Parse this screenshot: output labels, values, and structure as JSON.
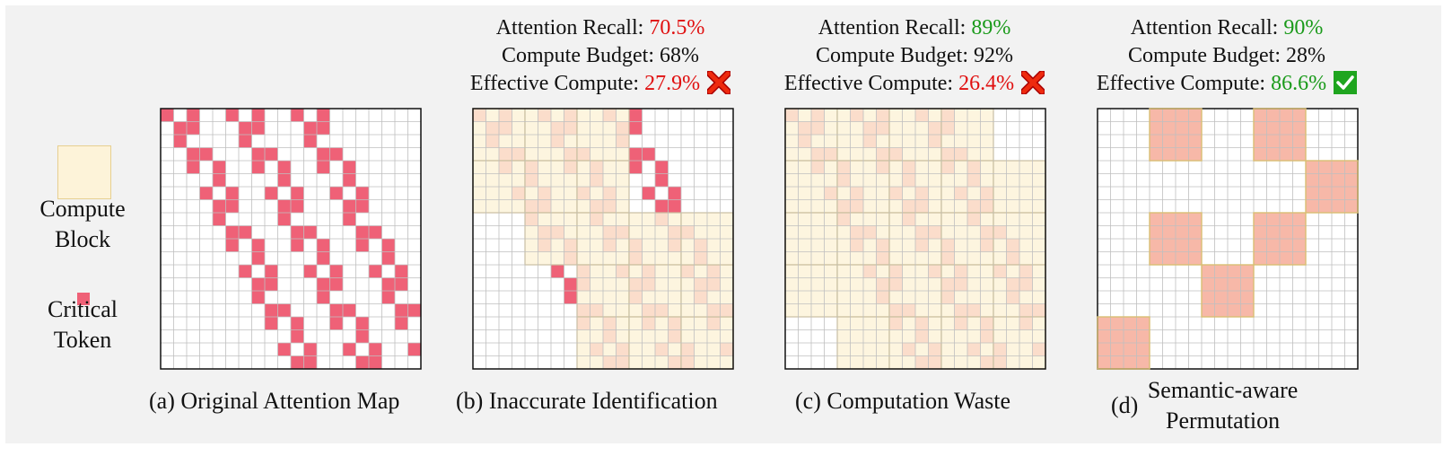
{
  "colors": {
    "panel_bg": "#f2f2f2",
    "grid_line": "#bfbfbf",
    "grid_border": "#111111",
    "critical": "#ef6177",
    "compute_block": "#fdf3d9",
    "compute_block_border": "#d9bf73",
    "permuted_block": "#f7b8a8",
    "bad": "#e01010",
    "good": "#1a9a1a"
  },
  "legend": {
    "compute_block": "Compute\nBlock",
    "critical_token": "Critical\nToken"
  },
  "panels": [
    {
      "caption": "(a) Original Attention Map"
    },
    {
      "caption": "(b) Inaccurate Identification",
      "metrics": {
        "recall_label": "Attention Recall:",
        "recall_value": "70.5%",
        "budget_label": "Compute Budget:",
        "budget_value": "68%",
        "effective_label": "Effective Compute:",
        "effective_value": "27.9%",
        "status_icon": "cross-icon"
      }
    },
    {
      "caption": "(c) Computation Waste",
      "metrics": {
        "recall_label": "Attention Recall:",
        "recall_value": "89%",
        "budget_label": "Compute Budget:",
        "budget_value": "92%",
        "effective_label": "Effective Compute:",
        "effective_value": "26.4%",
        "status_icon": "cross-icon"
      }
    },
    {
      "caption_prefix": "(d)",
      "caption": "Semantic-aware\nPermutation",
      "metrics": {
        "recall_label": "Attention Recall:",
        "recall_value": "90%",
        "budget_label": "Compute Budget:",
        "budget_value": "28%",
        "effective_label": "Effective Compute:",
        "effective_value": "86.6%",
        "status_icon": "check-icon"
      }
    }
  ]
}
